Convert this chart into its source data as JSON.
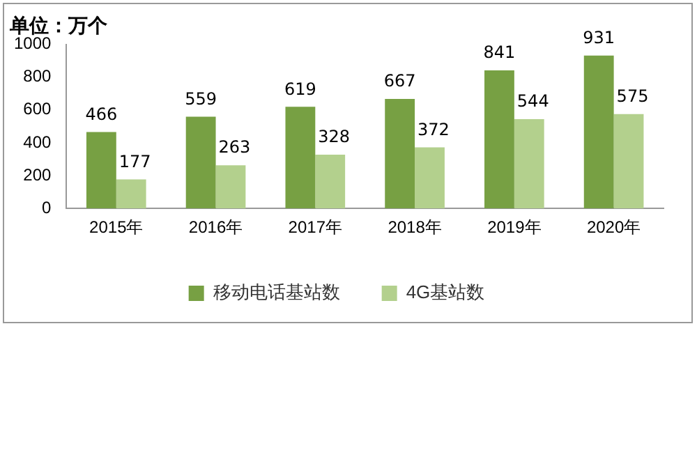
{
  "chart_data": {
    "type": "bar",
    "title": "单位：万个",
    "categories": [
      "2015年",
      "2016年",
      "2017年",
      "2018年",
      "2019年",
      "2020年"
    ],
    "series": [
      {
        "name": "移动电话基站数",
        "color": "#77a043",
        "values": [
          466,
          559,
          619,
          667,
          841,
          931
        ]
      },
      {
        "name": "4G基站数",
        "color": "#b3d08d",
        "values": [
          177,
          263,
          328,
          372,
          544,
          575
        ]
      }
    ],
    "ylim": [
      0,
      1000
    ],
    "yticks": [
      0,
      200,
      400,
      600,
      800,
      1000
    ],
    "grid": false,
    "legend": "bottom",
    "data_labels": true
  }
}
